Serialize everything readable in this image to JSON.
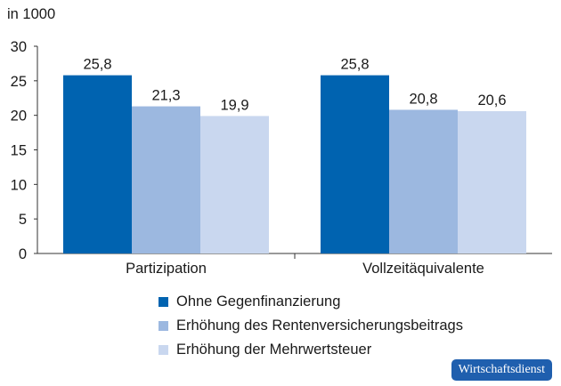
{
  "chart_data": {
    "type": "bar",
    "unit_label": "in 1000",
    "categories": [
      "Partizipation",
      "Vollzeitäquivalente"
    ],
    "series": [
      {
        "name": "Ohne Gegenfinanzierung",
        "color": "#0063b0",
        "values": [
          25.8,
          25.8
        ],
        "labels": [
          "25,8",
          "25,8"
        ]
      },
      {
        "name": "Erhöhung des Rentenversicherungsbeitrags",
        "color": "#9cb8e0",
        "values": [
          21.3,
          20.8
        ],
        "labels": [
          "21,3",
          "20,8"
        ]
      },
      {
        "name": "Erhöhung der Mehrwertsteuer",
        "color": "#c9d7ef",
        "values": [
          19.9,
          20.6
        ],
        "labels": [
          "19,9",
          "20,6"
        ]
      }
    ],
    "ylim": [
      0,
      30
    ],
    "yticks": [
      0,
      5,
      10,
      15,
      20,
      25,
      30
    ],
    "ytick_labels": [
      "0",
      "5",
      "10",
      "15",
      "20",
      "25",
      "30"
    ],
    "grid": false,
    "legend_position": "bottom"
  },
  "badge": "Wirtschaftsdienst"
}
